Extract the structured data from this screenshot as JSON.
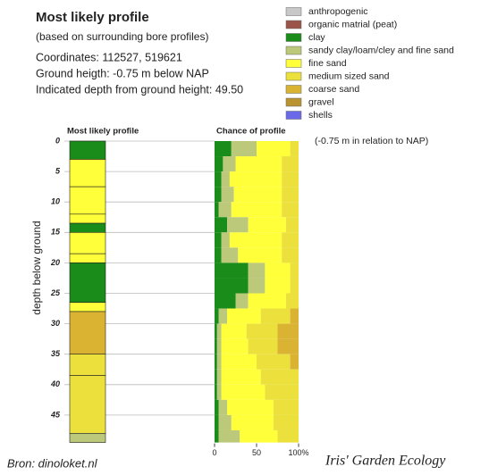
{
  "header": {
    "title": "Most likely profile",
    "subtitle": "(based on surrounding bore profiles)",
    "lines": [
      "Coordinates: 112527, 519621",
      "Ground heigth: -0.75 m below NAP",
      "Indicated depth from ground height: 49.50"
    ]
  },
  "legend": [
    {
      "name": "anthropogenic",
      "color": "#c8c8c8"
    },
    {
      "name": "organic matrial (peat)",
      "color": "#9a5548"
    },
    {
      "name": "clay",
      "color": "#1a8c1a"
    },
    {
      "name": "sandy clay/loam/cley and fine sand",
      "color": "#bcc87a"
    },
    {
      "name": "fine sand",
      "color": "#ffff3a"
    },
    {
      "name": "medium sized sand",
      "color": "#ebe03c"
    },
    {
      "name": "coarse sand",
      "color": "#dab332"
    },
    {
      "name": "gravel",
      "color": "#b99430"
    },
    {
      "name": "shells",
      "color": "#6a6ae8"
    }
  ],
  "profile": {
    "title": "Most likely profile",
    "ylabel": "depth below ground",
    "ylim": [
      0,
      49.5
    ],
    "yticks": [
      0,
      5,
      10,
      15,
      20,
      25,
      30,
      35,
      40,
      45
    ],
    "layers": [
      {
        "top": 0,
        "bottom": 3,
        "color": "#1a8c1a"
      },
      {
        "top": 3,
        "bottom": 7.5,
        "color": "#ffff3a"
      },
      {
        "top": 7.5,
        "bottom": 12,
        "color": "#ffff3a"
      },
      {
        "top": 12,
        "bottom": 13.5,
        "color": "#ffff3a"
      },
      {
        "top": 13.5,
        "bottom": 15,
        "color": "#1a8c1a"
      },
      {
        "top": 15,
        "bottom": 18.5,
        "color": "#ffff3a"
      },
      {
        "top": 18.5,
        "bottom": 20,
        "color": "#ffff3a"
      },
      {
        "top": 20,
        "bottom": 26.5,
        "color": "#1a8c1a"
      },
      {
        "top": 26.5,
        "bottom": 28,
        "color": "#ffff3a"
      },
      {
        "top": 28,
        "bottom": 35,
        "color": "#dab332"
      },
      {
        "top": 35,
        "bottom": 38.5,
        "color": "#ebe03c"
      },
      {
        "top": 38.5,
        "bottom": 48,
        "color": "#ebe03c"
      },
      {
        "top": 48,
        "bottom": 49.5,
        "color": "#bcc87a"
      }
    ]
  },
  "chance": {
    "title": "Chance of profile",
    "note": "(-0.75 m in relation to NAP)",
    "xlim": [
      0,
      100
    ],
    "xticks": [
      0,
      50,
      {
        "value": 100,
        "label": "100%"
      }
    ],
    "depths": [
      0,
      2.5,
      5,
      7.5,
      10,
      12.5,
      15,
      17.5,
      20,
      22.5,
      25,
      27.5,
      30,
      32.5,
      35,
      37.5,
      40,
      42.5,
      45,
      47.5,
      49.5
    ],
    "series": [
      {
        "color": "#1a8c1a",
        "values": [
          20,
          10,
          8,
          8,
          5,
          15,
          8,
          8,
          40,
          40,
          25,
          5,
          3,
          3,
          3,
          3,
          3,
          5,
          5,
          5
        ]
      },
      {
        "color": "#bcc87a",
        "values": [
          30,
          15,
          10,
          15,
          15,
          25,
          10,
          20,
          20,
          20,
          15,
          10,
          5,
          5,
          5,
          5,
          5,
          10,
          15,
          25
        ]
      },
      {
        "color": "#ffff3a",
        "values": [
          40,
          55,
          62,
          57,
          60,
          45,
          62,
          52,
          30,
          30,
          45,
          40,
          30,
          32,
          42,
          47,
          52,
          55,
          50,
          45
        ]
      },
      {
        "color": "#ebe03c",
        "values": [
          10,
          20,
          20,
          20,
          20,
          15,
          20,
          20,
          10,
          10,
          15,
          35,
          37,
          35,
          40,
          45,
          40,
          30,
          30,
          25
        ]
      },
      {
        "color": "#dab332",
        "values": [
          0,
          0,
          0,
          0,
          0,
          0,
          0,
          0,
          0,
          0,
          0,
          10,
          25,
          25,
          10,
          0,
          0,
          0,
          0,
          0
        ]
      }
    ]
  },
  "footer": {
    "source": "Bron: dinoloket.nl",
    "credit": "Iris' Garden Ecology"
  }
}
